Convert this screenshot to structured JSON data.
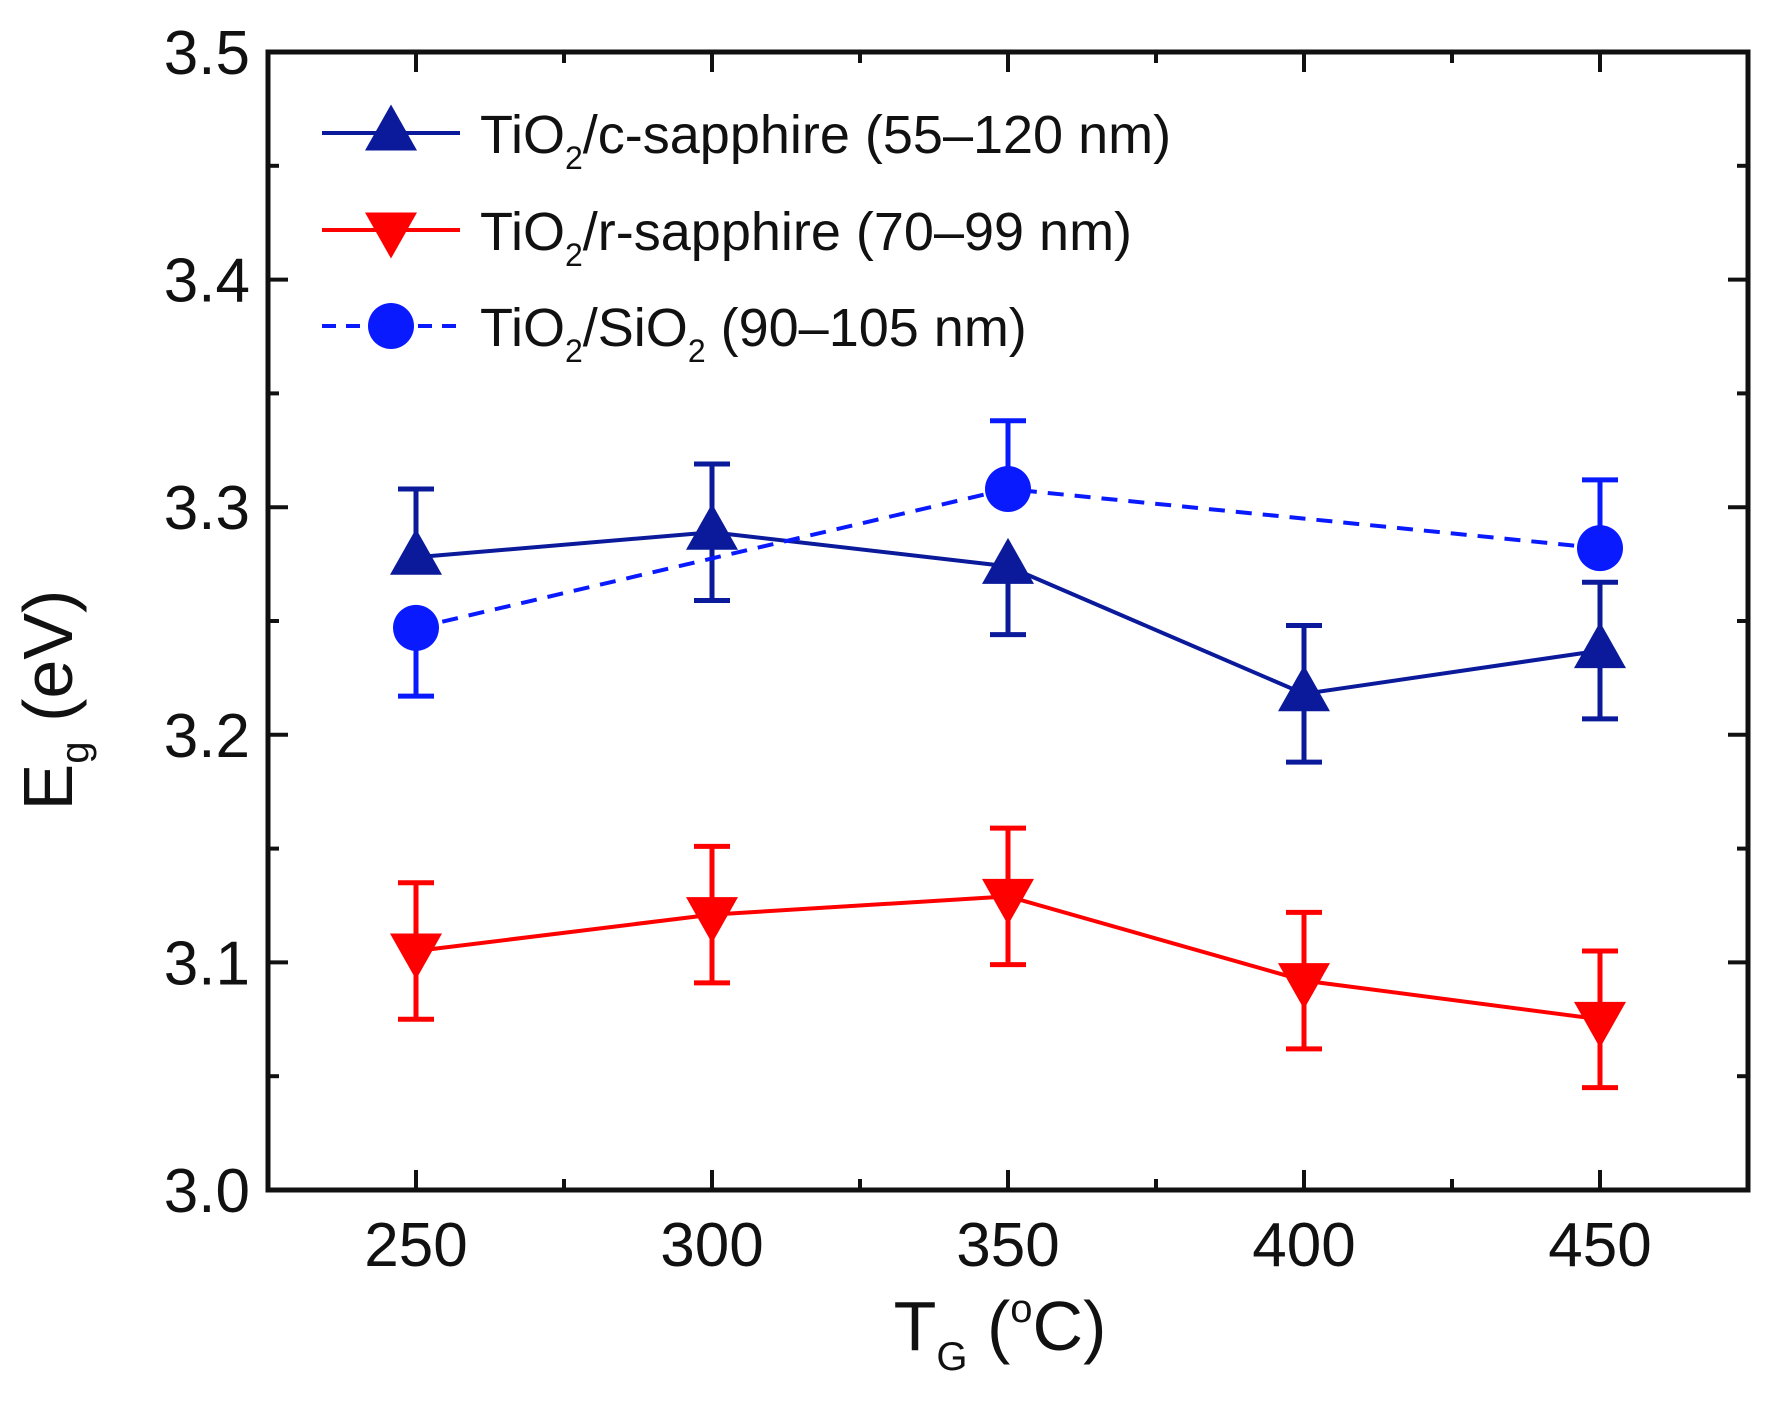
{
  "chart_data": {
    "type": "line",
    "title": "",
    "xlabel": {
      "main": "T",
      "sub": "G",
      "unit_open": " (",
      "degree": "o",
      "unit_close": "C)"
    },
    "ylabel": {
      "main": "E",
      "sub": "g",
      "unit": " (eV)"
    },
    "xlim": [
      225,
      475
    ],
    "ylim": [
      3.0,
      3.5
    ],
    "x_ticks": [
      250,
      300,
      350,
      400,
      450
    ],
    "x_tick_labels": [
      "250",
      "300",
      "350",
      "400",
      "450"
    ],
    "y_ticks": [
      3.0,
      3.1,
      3.2,
      3.3,
      3.4,
      3.5
    ],
    "y_tick_labels": [
      "3.0",
      "3.1",
      "3.2",
      "3.3",
      "3.4",
      "3.5"
    ],
    "grid": false,
    "legend_position": "top-left",
    "series": [
      {
        "name": "TiO2/c-sapphire (55–120 nm)",
        "legend": {
          "pre": "TiO",
          "sub": "2",
          "post": "/c-sapphire (55–120 nm)"
        },
        "color": "#0a1a9a",
        "marker": "triangle-up",
        "line_style": "solid",
        "x": [
          250,
          300,
          350,
          400,
          450
        ],
        "y": [
          3.278,
          3.289,
          3.274,
          3.218,
          3.237
        ],
        "error_up": [
          0.03,
          0.03,
          0.0,
          0.03,
          0.03
        ],
        "error_down": [
          0.0,
          0.03,
          0.03,
          0.03,
          0.03
        ]
      },
      {
        "name": "TiO2/r-sapphire (70–99 nm)",
        "legend": {
          "pre": "TiO",
          "sub": "2",
          "post": "/r-sapphire (70–99 nm)"
        },
        "color": "#ff0000",
        "marker": "triangle-down",
        "line_style": "solid",
        "x": [
          250,
          300,
          350,
          400,
          450
        ],
        "y": [
          3.105,
          3.121,
          3.129,
          3.092,
          3.075
        ],
        "error_up": [
          0.03,
          0.03,
          0.03,
          0.03,
          0.03
        ],
        "error_down": [
          0.03,
          0.03,
          0.03,
          0.03,
          0.03
        ]
      },
      {
        "name": "TiO2/SiO2 (90–105 nm)",
        "legend": {
          "pre": "TiO",
          "sub": "2",
          "mid": "/SiO",
          "sub2": "2",
          "post": " (90–105 nm)"
        },
        "color": "#0a1aff",
        "marker": "circle",
        "line_style": "dashed",
        "x": [
          250,
          350,
          450
        ],
        "y": [
          3.247,
          3.308,
          3.282
        ],
        "error_up": [
          0.0,
          0.03,
          0.03
        ],
        "error_down": [
          0.03,
          0.0,
          0.0
        ]
      }
    ]
  }
}
